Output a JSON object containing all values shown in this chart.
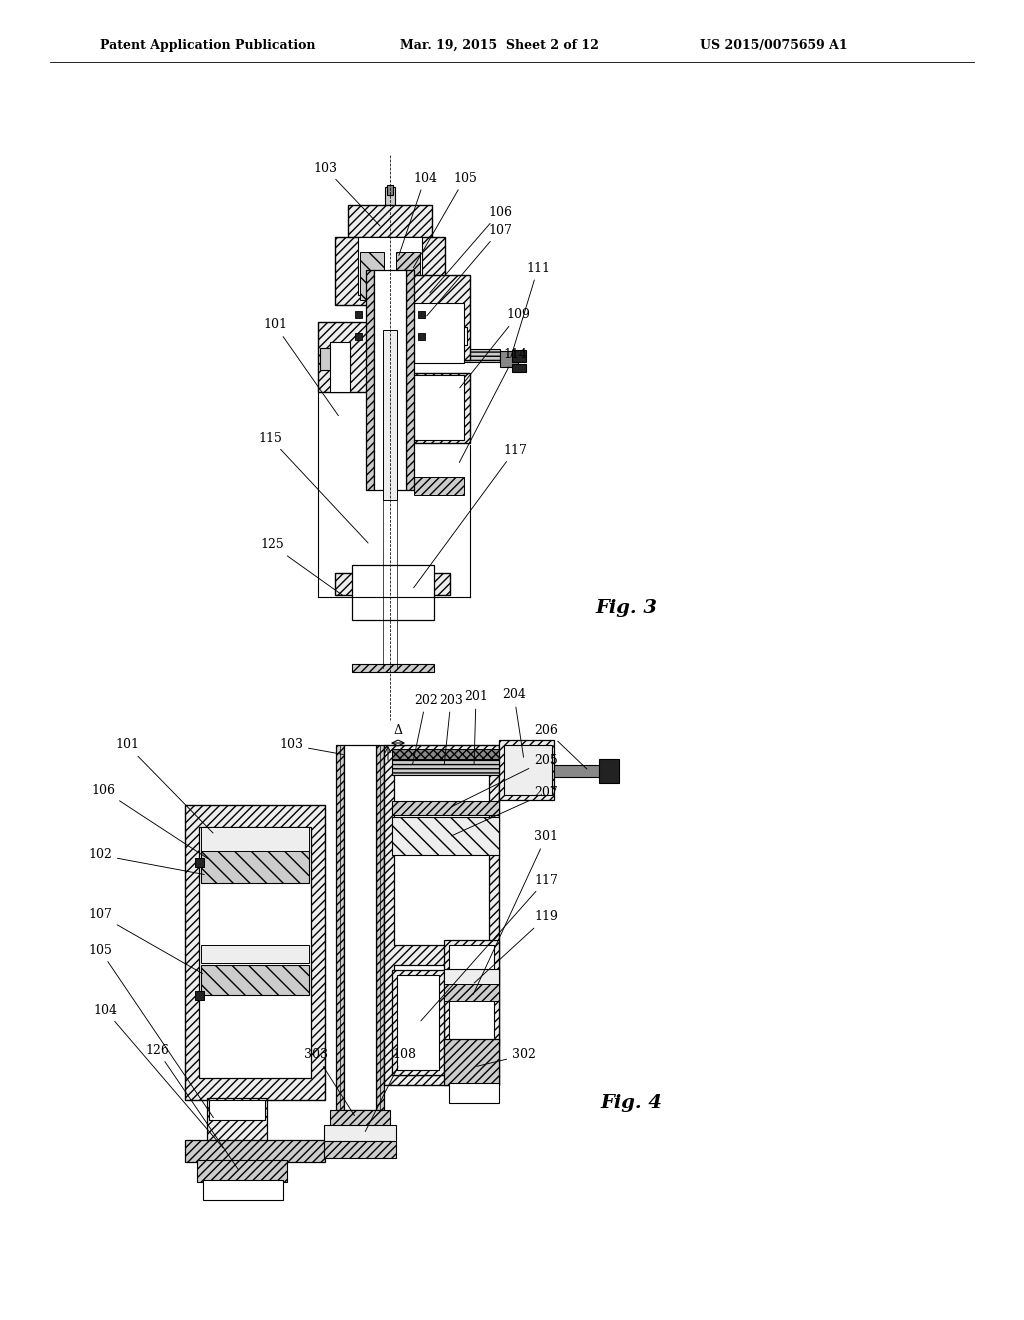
{
  "bg_color": "#ffffff",
  "header_left": "Patent Application Publication",
  "header_mid": "Mar. 19, 2015  Sheet 2 of 12",
  "header_right": "US 2015/0075659 A1",
  "fig3_label": "Fig. 3",
  "fig4_label": "Fig. 4",
  "fill_light": "#eeeeee",
  "fill_med": "#cccccc",
  "fill_dark": "#888888",
  "fill_black": "#222222",
  "line_color": "#000000"
}
